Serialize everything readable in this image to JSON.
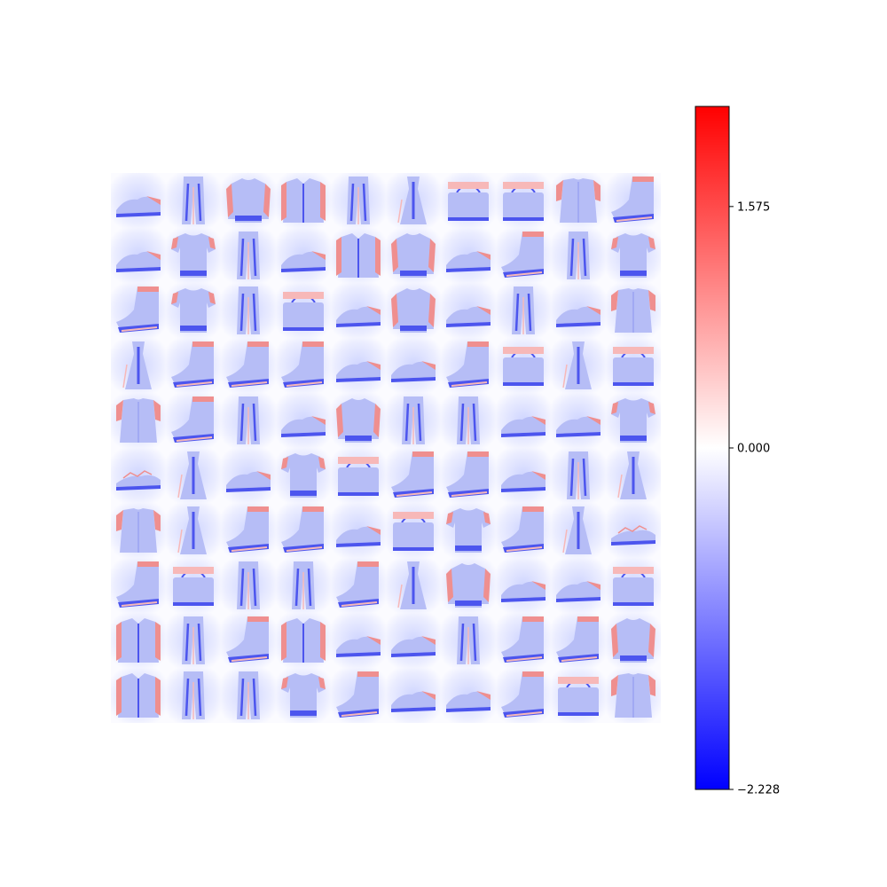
{
  "chart_data": {
    "type": "heatmap",
    "grid": {
      "rows": 10,
      "cols": 10,
      "cells": [
        [
          "sneaker",
          "trouser",
          "pullover",
          "coat",
          "trouser",
          "dress",
          "bag",
          "bag",
          "shirt",
          "ankle-boot"
        ],
        [
          "sneaker",
          "tshirt",
          "trouser",
          "sneaker",
          "coat",
          "pullover",
          "sneaker",
          "ankle-boot",
          "trouser",
          "tshirt"
        ],
        [
          "ankle-boot",
          "tshirt",
          "trouser",
          "bag",
          "sneaker",
          "pullover",
          "sneaker",
          "trouser",
          "sneaker",
          "shirt"
        ],
        [
          "dress",
          "ankle-boot",
          "ankle-boot",
          "ankle-boot",
          "sneaker",
          "sneaker",
          "ankle-boot",
          "bag",
          "dress",
          "bag"
        ],
        [
          "shirt",
          "ankle-boot",
          "trouser",
          "sneaker",
          "pullover",
          "trouser",
          "trouser",
          "sneaker",
          "sneaker",
          "tshirt"
        ],
        [
          "sandal",
          "dress",
          "sneaker",
          "tshirt",
          "bag",
          "ankle-boot",
          "ankle-boot",
          "sneaker",
          "trouser",
          "dress"
        ],
        [
          "shirt",
          "dress",
          "ankle-boot",
          "ankle-boot",
          "sneaker",
          "bag",
          "tshirt",
          "ankle-boot",
          "dress",
          "sandal"
        ],
        [
          "ankle-boot",
          "bag",
          "trouser",
          "trouser",
          "ankle-boot",
          "dress",
          "pullover",
          "sneaker",
          "sneaker",
          "bag"
        ],
        [
          "coat",
          "trouser",
          "ankle-boot",
          "coat",
          "sneaker",
          "sneaker",
          "trouser",
          "ankle-boot",
          "ankle-boot",
          "pullover"
        ],
        [
          "coat",
          "trouser",
          "trouser",
          "tshirt",
          "ankle-boot",
          "sneaker",
          "sneaker",
          "ankle-boot",
          "bag",
          "shirt"
        ]
      ]
    },
    "colorbar": {
      "colormap": "bwr",
      "vmin": -2.228,
      "vmax": 2.228,
      "ticks": [
        {
          "value": 1.575,
          "label": "1.575"
        },
        {
          "value": 0.0,
          "label": "0.000"
        },
        {
          "value": -2.228,
          "label": "−2.228"
        }
      ],
      "colors": {
        "low": "#0000ff",
        "mid": "#ffffff",
        "high": "#ff0000"
      }
    }
  }
}
